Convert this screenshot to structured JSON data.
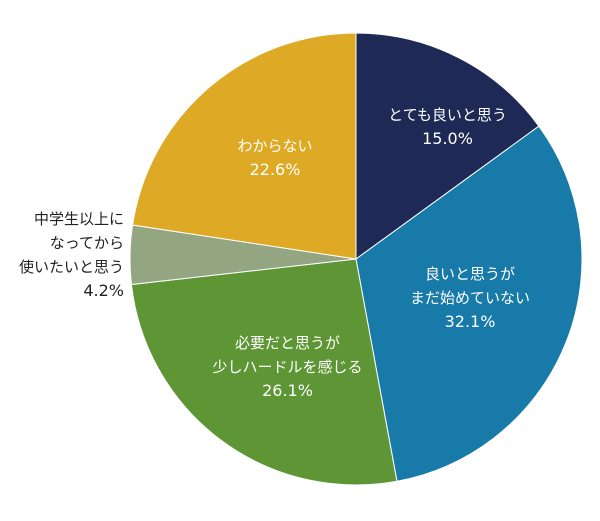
{
  "chart_data": {
    "type": "pie",
    "title": "",
    "start_angle_deg": 0,
    "direction": "clockwise",
    "categories": [
      "とても良いと思う",
      "良いと思うがまだ始めていない",
      "必要だと思うが少しハードルを感じる",
      "中学生以上になってから使いたいと思う",
      "わからない"
    ],
    "values": [
      15.0,
      32.1,
      26.1,
      4.2,
      22.6
    ],
    "colors": [
      "#1e2a55",
      "#177aa8",
      "#5e9636",
      "#94a582",
      "#deaa25"
    ],
    "unit": "%"
  },
  "labels": [
    {
      "lines": [
        "とても良いと思う"
      ],
      "pct": "15.0%"
    },
    {
      "lines": [
        "良いと思うが",
        "まだ始めていない"
      ],
      "pct": "32.1%"
    },
    {
      "lines": [
        "必要だと思うが",
        "少しハードルを感じる"
      ],
      "pct": "26.1%"
    },
    {
      "lines": [
        "中学生以上に",
        "なってから",
        "使いたいと思う"
      ],
      "pct": "4.2%"
    },
    {
      "lines": [
        "わからない"
      ],
      "pct": "22.6%"
    }
  ]
}
